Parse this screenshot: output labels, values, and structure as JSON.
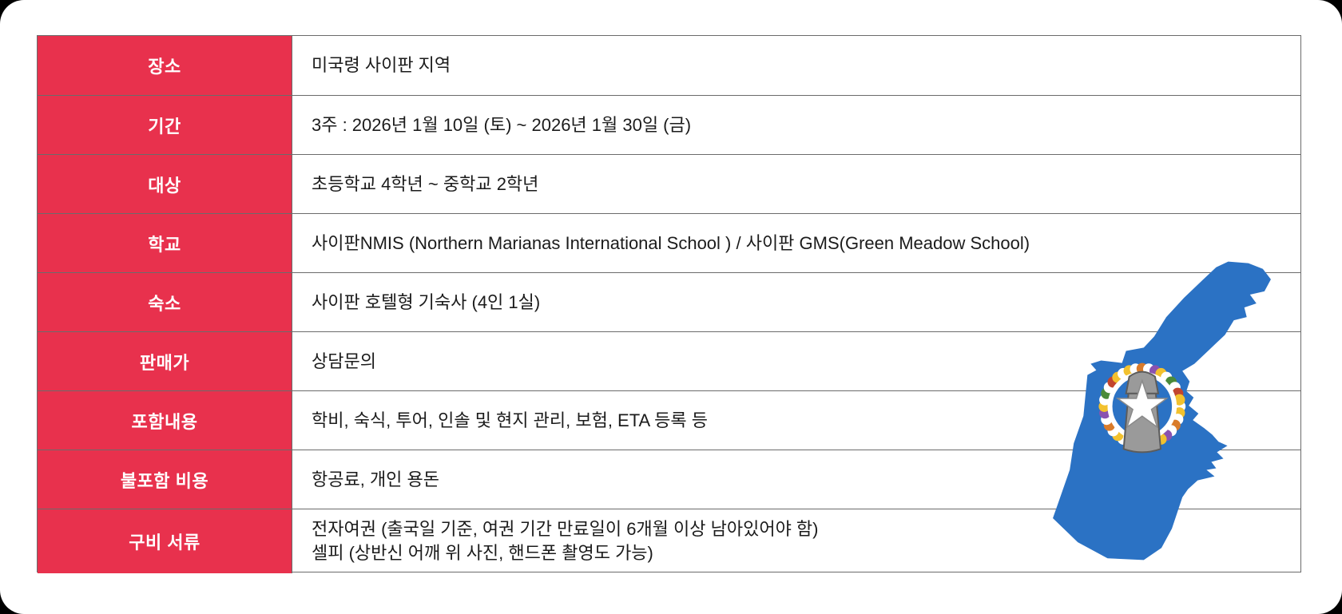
{
  "colors": {
    "label_bg": "#e8314d",
    "label_text": "#ffffff",
    "content_text": "#1b1b1b",
    "table_border": "#6b6b6b",
    "island_blue": "#2b72c4",
    "latte_stone_gray": "#9a9a9a",
    "page_corner_bg": "#000000"
  },
  "icons": {
    "map": "saipan-island-flag-map"
  },
  "table": {
    "rows": [
      {
        "label": "장소",
        "content": "미국령 사이판 지역"
      },
      {
        "label": "기간",
        "content": "3주 : 2026년 1월 10일 (토) ~ 2026년 1월 30일 (금)"
      },
      {
        "label": "대상",
        "content": "초등학교 4학년 ~ 중학교 2학년"
      },
      {
        "label": "학교",
        "content": "사이판NMIS (Northern Marianas International School ) / 사이판 GMS(Green Meadow School)"
      },
      {
        "label": "숙소",
        "content": "사이판 호텔형 기숙사 (4인 1실)"
      },
      {
        "label": "판매가",
        "content": "상담문의"
      },
      {
        "label": "포함내용",
        "content": "학비, 숙식, 투어, 인솔 및 현지 관리, 보험, ETA 등록 등"
      },
      {
        "label": "불포함 비용",
        "content": "항공료, 개인 용돈"
      },
      {
        "label": "구비 서류",
        "lines": [
          "전자여권 (출국일 기준, 여권 기간 만료일이 6개월 이상 남아있어야 함)",
          "셀피 (상반신 어깨 위 사진, 핸드폰 촬영도 가능)"
        ]
      }
    ]
  }
}
